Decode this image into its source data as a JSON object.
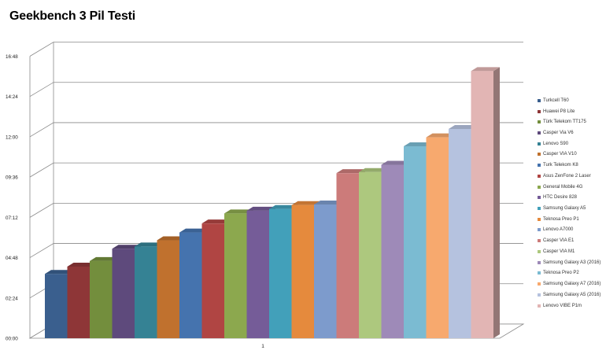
{
  "chart_data": {
    "type": "bar",
    "title": "Geekbench 3 Pil Testi",
    "categories": [
      "1"
    ],
    "y_ticks": [
      "00:00",
      "02:24",
      "04:48",
      "07:12",
      "09:36",
      "12:00",
      "14:24",
      "16:48"
    ],
    "ylim": [
      0,
      1008
    ],
    "grid": true,
    "legend_position": "right",
    "series": [
      {
        "name": "Turkcell T60",
        "value": 230,
        "color": "#3A5F8E"
      },
      {
        "name": "Huawei P8 Lite",
        "value": 256,
        "color": "#8E3637"
      },
      {
        "name": "Türk Telekom TT175",
        "value": 276,
        "color": "#738E3D"
      },
      {
        "name": "Casper Via V6",
        "value": 320,
        "color": "#5E4A7C"
      },
      {
        "name": "Lenovo S90",
        "value": 328,
        "color": "#358294"
      },
      {
        "name": "Casper VIA V10",
        "value": 350,
        "color": "#C0712E"
      },
      {
        "name": "Turk Telekom K8",
        "value": 378,
        "color": "#4573AE"
      },
      {
        "name": "Asus ZenFone 2 Laser",
        "value": 410,
        "color": "#B04543"
      },
      {
        "name": "General Mobile 4G",
        "value": 446,
        "color": "#8CA84E"
      },
      {
        "name": "HTC Desire 828",
        "value": 456,
        "color": "#755C98"
      },
      {
        "name": "Samsung Galaxy A5",
        "value": 462,
        "color": "#42A0BA"
      },
      {
        "name": "Teknosa Preo P1",
        "value": 476,
        "color": "#E58A3D"
      },
      {
        "name": "Lenovo A7000",
        "value": 478,
        "color": "#7D9BCC"
      },
      {
        "name": "Casper VIA E1",
        "value": 590,
        "color": "#CC7B7A"
      },
      {
        "name": "Casper VIA M1",
        "value": 594,
        "color": "#ADC87E"
      },
      {
        "name": "Samsung Galaxy A3 (2016)",
        "value": 620,
        "color": "#9E8AB8"
      },
      {
        "name": "Teknosa Preo P2",
        "value": 686,
        "color": "#7BBBD2"
      },
      {
        "name": "Samsung Galaxy A7 (2016)",
        "value": 718,
        "color": "#F7A96E"
      },
      {
        "name": "Samsung Galaxy A5 (2016)",
        "value": 748,
        "color": "#B5C2DF"
      },
      {
        "name": "Lenovo VIBE P1m",
        "value": 955,
        "color": "#E2B5B4"
      }
    ]
  }
}
